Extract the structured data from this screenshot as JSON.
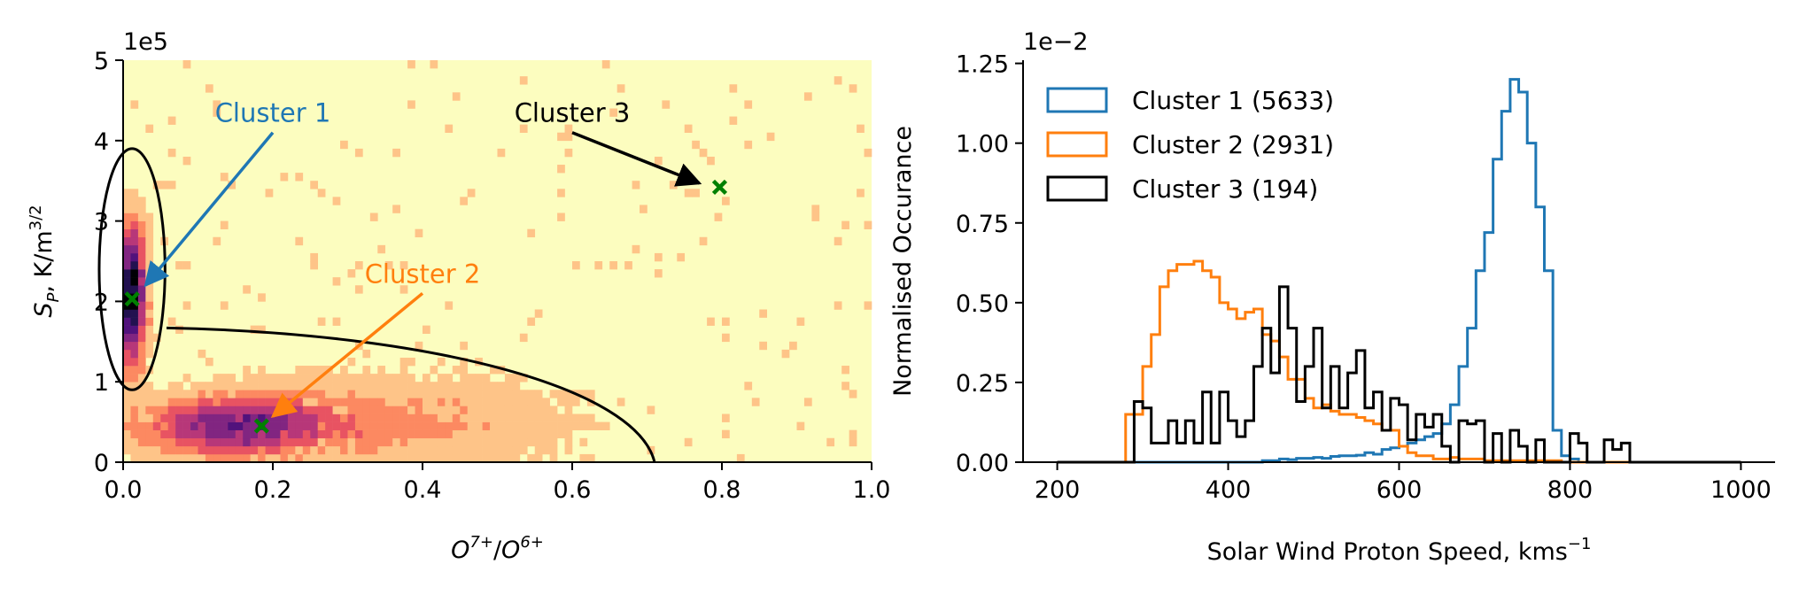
{
  "chart_data": [
    {
      "type": "heatmap",
      "xlabel_base": "O",
      "xlabel_num_sup": "7+",
      "xlabel_sep": "/",
      "xlabel_den_sup": "6+",
      "ylabel_var": "S",
      "ylabel_sub": "P",
      "ylabel_units": ", K/m",
      "ylabel_units_sup": "3/2",
      "y_offset_label": "1e5",
      "xlim": [
        0,
        1.0
      ],
      "ylim": [
        0,
        5
      ],
      "xticks": [
        0.0,
        0.2,
        0.4,
        0.6,
        0.8,
        1.0
      ],
      "xtick_labels": [
        "0.0",
        "0.2",
        "0.4",
        "0.6",
        "0.8",
        "1.0"
      ],
      "yticks": [
        0,
        1,
        2,
        3,
        4,
        5
      ],
      "ytick_labels": [
        "0",
        "1",
        "2",
        "3",
        "4",
        "5"
      ],
      "background_color": "#fcfdbf",
      "colormap": "magma",
      "cluster_centers": [
        {
          "name": "Cluster 1",
          "x": 0.012,
          "y": 2.03
        },
        {
          "name": "Cluster 2",
          "x": 0.185,
          "y": 0.45
        },
        {
          "name": "Cluster 3",
          "x": 0.797,
          "y": 3.42
        }
      ],
      "center_marker_color": "#008000",
      "boundaries": [
        {
          "type": "ellipse",
          "cx": 0.012,
          "cy": 2.4,
          "rx": 0.044,
          "ry": 1.5
        },
        {
          "type": "ellipse_arc",
          "x0": 0.058,
          "y0": 1.67,
          "x1": 0.71,
          "y1": 0.0
        }
      ],
      "annotations": [
        {
          "text": "Cluster 1",
          "x": 0.2,
          "y": 4.1,
          "target": [
            0.03,
            2.2
          ],
          "color": "#1f77b4"
        },
        {
          "text": "Cluster 2",
          "x": 0.4,
          "y": 2.1,
          "target": [
            0.2,
            0.57
          ],
          "color": "#ff7f0e"
        },
        {
          "text": "Cluster 3",
          "x": 0.6,
          "y": 4.1,
          "target": [
            0.77,
            3.47
          ],
          "color": "#000000"
        }
      ]
    },
    {
      "type": "histogram",
      "xlabel": "Solar Wind Proton Speed, kms",
      "xlabel_sup": "−1",
      "ylabel": "Normalised Occurance",
      "y_offset_label": "1e−2",
      "xlim": [
        160,
        1040
      ],
      "ylim": [
        0,
        1.26
      ],
      "xticks": [
        200,
        400,
        600,
        800,
        1000
      ],
      "xtick_labels": [
        "200",
        "400",
        "600",
        "800",
        "1000"
      ],
      "yticks": [
        0,
        0.25,
        0.5,
        0.75,
        1.0,
        1.25
      ],
      "ytick_labels": [
        "0.00",
        "0.25",
        "0.50",
        "0.75",
        "1.00",
        "1.25"
      ],
      "bin_edges": [
        200,
        210,
        220,
        230,
        240,
        250,
        260,
        270,
        280,
        290,
        300,
        310,
        320,
        330,
        340,
        350,
        360,
        370,
        380,
        390,
        400,
        410,
        420,
        430,
        440,
        450,
        460,
        470,
        480,
        490,
        500,
        510,
        520,
        530,
        540,
        550,
        560,
        570,
        580,
        590,
        600,
        610,
        620,
        630,
        640,
        650,
        660,
        670,
        680,
        690,
        700,
        710,
        720,
        730,
        740,
        750,
        760,
        770,
        780,
        790,
        800,
        810,
        820,
        830,
        840,
        850,
        860,
        870,
        880,
        890,
        900,
        910,
        920,
        930,
        940,
        950,
        960,
        970,
        980,
        990,
        1000
      ],
      "legend_position": "upper-left",
      "series": [
        {
          "name": "Cluster 1 (5633)",
          "color": "#1f77b4",
          "values": [
            0,
            0,
            0,
            0,
            0,
            0,
            0,
            0,
            0,
            0,
            0,
            0,
            0,
            0,
            0,
            0,
            0,
            0,
            0,
            0,
            0,
            0,
            0,
            0,
            0.005,
            0.005,
            0.01,
            0.008,
            0.012,
            0.012,
            0.015,
            0.012,
            0.018,
            0.02,
            0.02,
            0.022,
            0.03,
            0.025,
            0.04,
            0.045,
            0.05,
            0.06,
            0.07,
            0.08,
            0.09,
            0.12,
            0.18,
            0.3,
            0.42,
            0.6,
            0.72,
            0.95,
            1.1,
            1.2,
            1.16,
            1.0,
            0.8,
            0.6,
            0.1,
            0.02,
            0.01,
            0,
            0,
            0,
            0,
            0,
            0,
            0,
            0,
            0,
            0,
            0,
            0,
            0,
            0,
            0,
            0,
            0,
            0,
            0
          ]
        },
        {
          "name": "Cluster 2 (2931)",
          "color": "#ff7f0e",
          "values": [
            0,
            0,
            0,
            0,
            0,
            0,
            0,
            0,
            0.15,
            0.15,
            0.3,
            0.4,
            0.55,
            0.6,
            0.62,
            0.62,
            0.63,
            0.6,
            0.58,
            0.5,
            0.48,
            0.45,
            0.47,
            0.48,
            0.4,
            0.38,
            0.33,
            0.26,
            0.26,
            0.2,
            0.17,
            0.18,
            0.16,
            0.15,
            0.15,
            0.14,
            0.13,
            0.12,
            0.1,
            0.1,
            0.05,
            0.03,
            0.02,
            0.02,
            0.01,
            0.01,
            0.015,
            0.01,
            0.01,
            0.01,
            0.005,
            0.005,
            0.005,
            0.005,
            0.005,
            0.005,
            0.005,
            0.005,
            0.005,
            0,
            0,
            0,
            0,
            0,
            0,
            0,
            0,
            0,
            0,
            0,
            0,
            0,
            0,
            0,
            0,
            0,
            0,
            0,
            0,
            0
          ]
        },
        {
          "name": "Cluster 3 (194)",
          "color": "#000000",
          "values": [
            0,
            0,
            0,
            0,
            0,
            0,
            0,
            0,
            0,
            0.19,
            0.17,
            0.06,
            0.06,
            0.13,
            0.06,
            0.13,
            0.06,
            0.22,
            0.06,
            0.22,
            0.13,
            0.08,
            0.13,
            0.3,
            0.42,
            0.28,
            0.55,
            0.42,
            0.19,
            0.3,
            0.42,
            0.17,
            0.3,
            0.17,
            0.28,
            0.35,
            0.17,
            0.22,
            0.1,
            0.2,
            0.18,
            0.07,
            0.15,
            0.11,
            0.15,
            0.05,
            0.0,
            0.13,
            0.12,
            0.13,
            0.0,
            0.09,
            0.0,
            0.1,
            0.05,
            0.0,
            0.07,
            0.0,
            0.0,
            0.0,
            0.09,
            0.06,
            0.0,
            0.0,
            0.07,
            0.04,
            0.06,
            0.0,
            0.0,
            0.0,
            0.0,
            0.0,
            0.0,
            0.0,
            0.0,
            0.0,
            0.0,
            0.0,
            0.0,
            0.0
          ]
        }
      ]
    }
  ]
}
